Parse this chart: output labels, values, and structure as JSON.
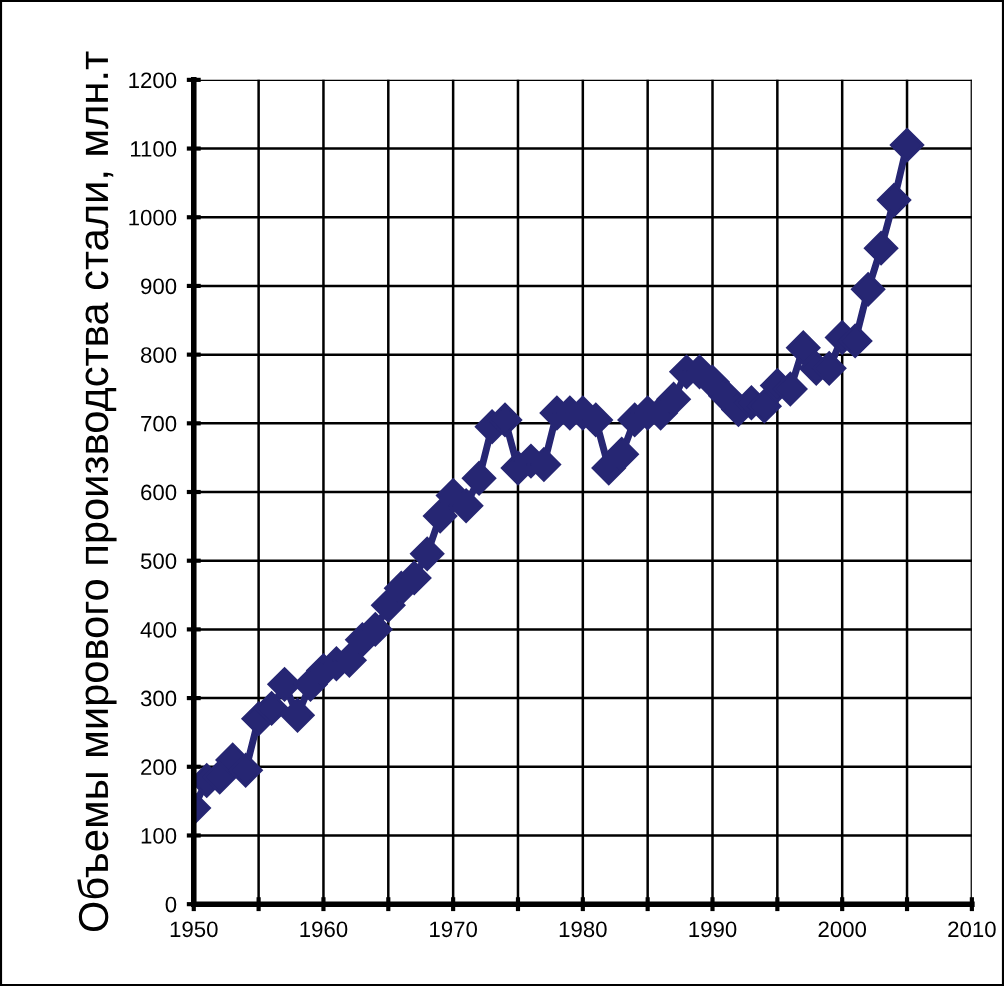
{
  "chart_data": {
    "type": "line",
    "ylabel": "Объемы мирового производства стали, млн.т",
    "x": [
      1950,
      1951,
      1952,
      1953,
      1954,
      1955,
      1956,
      1957,
      1958,
      1959,
      1960,
      1961,
      1962,
      1963,
      1964,
      1965,
      1966,
      1967,
      1968,
      1969,
      1970,
      1971,
      1972,
      1973,
      1974,
      1975,
      1976,
      1977,
      1978,
      1979,
      1980,
      1981,
      1982,
      1983,
      1984,
      1985,
      1986,
      1987,
      1988,
      1989,
      1990,
      1991,
      1992,
      1993,
      1994,
      1995,
      1996,
      1997,
      1998,
      1999,
      2000,
      2001,
      2002,
      2003,
      2004,
      2005
    ],
    "series": [
      {
        "color": "#262673",
        "values": [
          140,
          180,
          185,
          210,
          195,
          270,
          285,
          320,
          275,
          320,
          340,
          350,
          355,
          385,
          400,
          435,
          460,
          475,
          510,
          565,
          595,
          580,
          620,
          695,
          705,
          635,
          645,
          640,
          715,
          715,
          715,
          705,
          635,
          655,
          705,
          715,
          715,
          735,
          775,
          775,
          760,
          740,
          720,
          730,
          725,
          755,
          750,
          810,
          780,
          780,
          825,
          820,
          895,
          955,
          1025,
          1105
        ]
      }
    ],
    "xlim": [
      1950,
      2010
    ],
    "xticks": [
      1950,
      {
        "value": 1955,
        "label": null
      },
      1960,
      {
        "value": 1965,
        "label": null
      },
      1970,
      {
        "value": 1975,
        "label": null
      },
      1980,
      {
        "value": 1985,
        "label": null
      },
      1990,
      {
        "value": 1995,
        "label": null
      },
      2000,
      {
        "value": 2005,
        "label": null
      },
      2010
    ],
    "ylim": [
      0,
      1200
    ],
    "yticks": [
      0,
      100,
      200,
      300,
      400,
      500,
      600,
      700,
      800,
      900,
      1000,
      1100,
      1200
    ],
    "grid": true,
    "legend": false,
    "marker": "diamond",
    "line_style": "solid"
  }
}
